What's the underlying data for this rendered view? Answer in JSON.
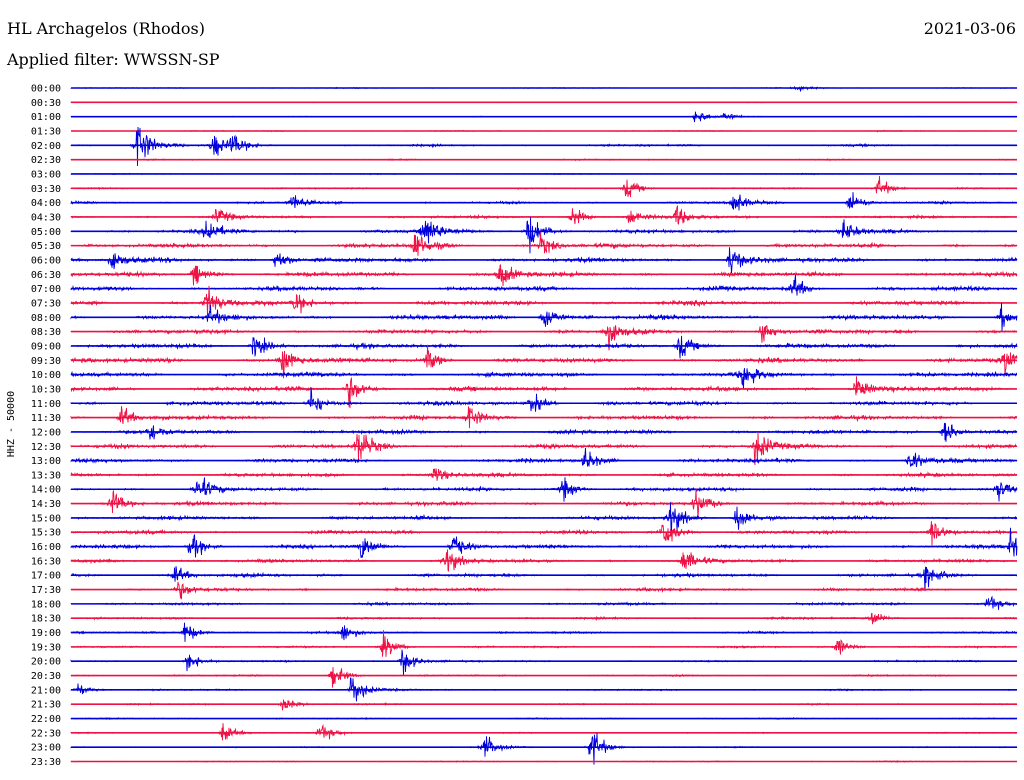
{
  "header": {
    "station": "HL Archagelos (Rhodos)",
    "date": "2021-03-06",
    "filter": "Applied filter: WWSSN-SP"
  },
  "chart_data": {
    "type": "line",
    "title": "HL Archagelos (Rhodos)",
    "subtitle": "Applied filter: WWSSN-SP",
    "date": "2021-03-06",
    "ylabel": "HHZ - 50000",
    "trace_labels": [
      "00:00",
      "00:30",
      "01:00",
      "01:30",
      "02:00",
      "02:30",
      "03:00",
      "03:30",
      "04:00",
      "04:30",
      "05:00",
      "05:30",
      "06:00",
      "06:30",
      "07:00",
      "07:30",
      "08:00",
      "08:30",
      "09:00",
      "09:30",
      "10:00",
      "10:30",
      "11:00",
      "11:30",
      "12:00",
      "12:30",
      "13:00",
      "13:30",
      "14:00",
      "14:30",
      "15:00",
      "15:30",
      "16:00",
      "16:30",
      "17:00",
      "17:30",
      "18:00",
      "18:30",
      "19:00",
      "19:30",
      "20:00",
      "20:30",
      "21:00",
      "21:30",
      "22:00",
      "22:30",
      "23:00",
      "23:30"
    ],
    "trace_colors": [
      "#0000dd",
      "#ee1144"
    ],
    "trace_duration_minutes": 30,
    "noise_level": [
      0.12,
      0.08,
      0.1,
      0.14,
      0.28,
      0.18,
      0.14,
      0.2,
      0.32,
      0.38,
      0.5,
      0.58,
      0.62,
      0.62,
      0.6,
      0.6,
      0.62,
      0.6,
      0.62,
      0.64,
      0.62,
      0.62,
      0.58,
      0.56,
      0.54,
      0.56,
      0.54,
      0.52,
      0.52,
      0.52,
      0.5,
      0.5,
      0.5,
      0.48,
      0.46,
      0.42,
      0.36,
      0.3,
      0.28,
      0.26,
      0.24,
      0.22,
      0.22,
      0.2,
      0.18,
      0.16,
      0.16,
      0.14
    ],
    "events": [
      {
        "trace": 0,
        "minute": 23.0,
        "amp": 3
      },
      {
        "trace": 2,
        "minute": 19.8,
        "amp": 8
      },
      {
        "trace": 2,
        "minute": 20.7,
        "amp": 4
      },
      {
        "trace": 4,
        "minute": 2.1,
        "amp": 30
      },
      {
        "trace": 4,
        "minute": 4.5,
        "amp": 14
      },
      {
        "trace": 4,
        "minute": 5.1,
        "amp": 12
      },
      {
        "trace": 7,
        "minute": 17.6,
        "amp": 11
      },
      {
        "trace": 7,
        "minute": 25.6,
        "amp": 12
      },
      {
        "trace": 8,
        "minute": 7.0,
        "amp": 9
      },
      {
        "trace": 8,
        "minute": 21.0,
        "amp": 14
      },
      {
        "trace": 8,
        "minute": 24.7,
        "amp": 12
      },
      {
        "trace": 9,
        "minute": 4.6,
        "amp": 8
      },
      {
        "trace": 9,
        "minute": 15.9,
        "amp": 10
      },
      {
        "trace": 9,
        "minute": 17.7,
        "amp": 9
      },
      {
        "trace": 9,
        "minute": 19.2,
        "amp": 11
      },
      {
        "trace": 10,
        "minute": 4.3,
        "amp": 14
      },
      {
        "trace": 10,
        "minute": 11.2,
        "amp": 20
      },
      {
        "trace": 10,
        "minute": 14.5,
        "amp": 22
      },
      {
        "trace": 10,
        "minute": 24.5,
        "amp": 12
      },
      {
        "trace": 11,
        "minute": 10.9,
        "amp": 16
      },
      {
        "trace": 11,
        "minute": 14.9,
        "amp": 12
      },
      {
        "trace": 12,
        "minute": 1.3,
        "amp": 10
      },
      {
        "trace": 12,
        "minute": 6.5,
        "amp": 12
      },
      {
        "trace": 12,
        "minute": 20.9,
        "amp": 16
      },
      {
        "trace": 13,
        "minute": 3.9,
        "amp": 12
      },
      {
        "trace": 13,
        "minute": 13.6,
        "amp": 14
      },
      {
        "trace": 14,
        "minute": 22.9,
        "amp": 12
      },
      {
        "trace": 15,
        "minute": 4.3,
        "amp": 18
      },
      {
        "trace": 15,
        "minute": 7.1,
        "amp": 12
      },
      {
        "trace": 16,
        "minute": 4.4,
        "amp": 10
      },
      {
        "trace": 16,
        "minute": 15.0,
        "amp": 16
      },
      {
        "trace": 16,
        "minute": 29.5,
        "amp": 12
      },
      {
        "trace": 17,
        "minute": 17.0,
        "amp": 16
      },
      {
        "trace": 17,
        "minute": 21.9,
        "amp": 14
      },
      {
        "trace": 18,
        "minute": 5.8,
        "amp": 14
      },
      {
        "trace": 18,
        "minute": 19.3,
        "amp": 14
      },
      {
        "trace": 19,
        "minute": 6.7,
        "amp": 16
      },
      {
        "trace": 19,
        "minute": 11.3,
        "amp": 12
      },
      {
        "trace": 19,
        "minute": 29.6,
        "amp": 14
      },
      {
        "trace": 20,
        "minute": 21.3,
        "amp": 16
      },
      {
        "trace": 21,
        "minute": 8.8,
        "amp": 18
      },
      {
        "trace": 21,
        "minute": 24.9,
        "amp": 14
      },
      {
        "trace": 22,
        "minute": 7.6,
        "amp": 16
      },
      {
        "trace": 22,
        "minute": 14.6,
        "amp": 12
      },
      {
        "trace": 23,
        "minute": 1.6,
        "amp": 12
      },
      {
        "trace": 23,
        "minute": 12.6,
        "amp": 16
      },
      {
        "trace": 24,
        "minute": 2.5,
        "amp": 10
      },
      {
        "trace": 24,
        "minute": 27.7,
        "amp": 14
      },
      {
        "trace": 25,
        "minute": 9.1,
        "amp": 20
      },
      {
        "trace": 25,
        "minute": 21.7,
        "amp": 20
      },
      {
        "trace": 26,
        "minute": 16.3,
        "amp": 12
      },
      {
        "trace": 26,
        "minute": 26.6,
        "amp": 12
      },
      {
        "trace": 27,
        "minute": 11.5,
        "amp": 10
      },
      {
        "trace": 28,
        "minute": 4.0,
        "amp": 16
      },
      {
        "trace": 28,
        "minute": 15.6,
        "amp": 12
      },
      {
        "trace": 28,
        "minute": 29.4,
        "amp": 12
      },
      {
        "trace": 29,
        "minute": 1.3,
        "amp": 16
      },
      {
        "trace": 29,
        "minute": 19.8,
        "amp": 14
      },
      {
        "trace": 30,
        "minute": 19.0,
        "amp": 18
      },
      {
        "trace": 30,
        "minute": 21.1,
        "amp": 16
      },
      {
        "trace": 31,
        "minute": 18.8,
        "amp": 20
      },
      {
        "trace": 31,
        "minute": 27.3,
        "amp": 14
      },
      {
        "trace": 32,
        "minute": 3.8,
        "amp": 14
      },
      {
        "trace": 32,
        "minute": 9.2,
        "amp": 14
      },
      {
        "trace": 32,
        "minute": 12.1,
        "amp": 16
      },
      {
        "trace": 32,
        "minute": 29.8,
        "amp": 14
      },
      {
        "trace": 33,
        "minute": 11.9,
        "amp": 14
      },
      {
        "trace": 33,
        "minute": 19.4,
        "amp": 14
      },
      {
        "trace": 34,
        "minute": 3.3,
        "amp": 10
      },
      {
        "trace": 34,
        "minute": 27.1,
        "amp": 12
      },
      {
        "trace": 35,
        "minute": 3.4,
        "amp": 10
      },
      {
        "trace": 36,
        "minute": 29.1,
        "amp": 10
      },
      {
        "trace": 37,
        "minute": 25.4,
        "amp": 9
      },
      {
        "trace": 38,
        "minute": 3.6,
        "amp": 12
      },
      {
        "trace": 38,
        "minute": 8.6,
        "amp": 10
      },
      {
        "trace": 39,
        "minute": 9.9,
        "amp": 14
      },
      {
        "trace": 39,
        "minute": 24.3,
        "amp": 10
      },
      {
        "trace": 40,
        "minute": 3.7,
        "amp": 10
      },
      {
        "trace": 40,
        "minute": 10.5,
        "amp": 14
      },
      {
        "trace": 41,
        "minute": 8.3,
        "amp": 12
      },
      {
        "trace": 42,
        "minute": 0.2,
        "amp": 8
      },
      {
        "trace": 42,
        "minute": 8.9,
        "amp": 20
      },
      {
        "trace": 43,
        "minute": 6.7,
        "amp": 8
      },
      {
        "trace": 45,
        "minute": 4.8,
        "amp": 10
      },
      {
        "trace": 45,
        "minute": 7.9,
        "amp": 10
      },
      {
        "trace": 46,
        "minute": 13.1,
        "amp": 14
      },
      {
        "trace": 46,
        "minute": 16.5,
        "amp": 22
      }
    ]
  }
}
